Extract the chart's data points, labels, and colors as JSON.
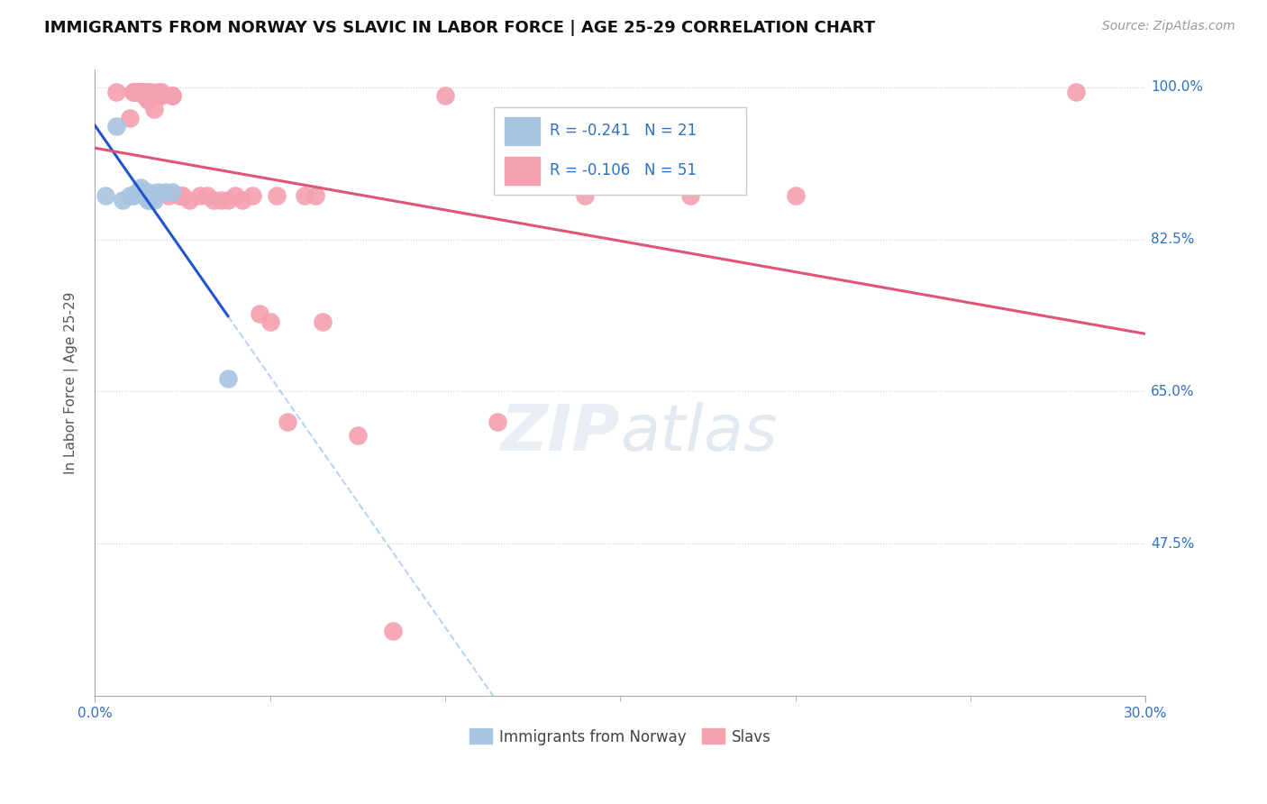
{
  "title": "IMMIGRANTS FROM NORWAY VS SLAVIC IN LABOR FORCE | AGE 25-29 CORRELATION CHART",
  "source": "Source: ZipAtlas.com",
  "ylabel": "In Labor Force | Age 25-29",
  "xlim": [
    0.0,
    0.3
  ],
  "ylim": [
    0.3,
    1.02
  ],
  "ytick_labels": [
    "100.0%",
    "82.5%",
    "65.0%",
    "47.5%"
  ],
  "ytick_values": [
    1.0,
    0.825,
    0.65,
    0.475
  ],
  "hgrid_values": [
    1.0,
    0.825,
    0.65,
    0.475
  ],
  "norway_R": -0.241,
  "norway_N": 21,
  "slavic_R": -0.106,
  "slavic_N": 51,
  "norway_color": "#a8c4e0",
  "slavic_color": "#f4a0b0",
  "norway_line_color": "#2255cc",
  "slavic_line_color": "#e05575",
  "dashed_line_color": "#a8c8f0",
  "legend_norway_fill": "#a8c4e0",
  "legend_slavic_fill": "#f4a0b0",
  "norway_x": [
    0.003,
    0.006,
    0.008,
    0.01,
    0.011,
    0.012,
    0.013,
    0.013,
    0.014,
    0.014,
    0.015,
    0.015,
    0.015,
    0.016,
    0.016,
    0.017,
    0.017,
    0.018,
    0.02,
    0.022,
    0.038
  ],
  "norway_y": [
    0.875,
    0.955,
    0.87,
    0.875,
    0.875,
    0.88,
    0.885,
    0.88,
    0.875,
    0.88,
    0.88,
    0.875,
    0.87,
    0.875,
    0.87,
    0.87,
    0.875,
    0.88,
    0.88,
    0.88,
    0.665
  ],
  "slavic_x": [
    0.006,
    0.01,
    0.011,
    0.011,
    0.012,
    0.012,
    0.012,
    0.013,
    0.013,
    0.013,
    0.014,
    0.014,
    0.015,
    0.015,
    0.016,
    0.016,
    0.017,
    0.018,
    0.018,
    0.019,
    0.019,
    0.021,
    0.022,
    0.022,
    0.024,
    0.025,
    0.025,
    0.027,
    0.03,
    0.032,
    0.034,
    0.036,
    0.038,
    0.04,
    0.042,
    0.045,
    0.047,
    0.05,
    0.052,
    0.055,
    0.06,
    0.063,
    0.065,
    0.075,
    0.085,
    0.1,
    0.115,
    0.14,
    0.17,
    0.2,
    0.28
  ],
  "slavic_y": [
    0.995,
    0.965,
    0.995,
    0.995,
    0.995,
    0.995,
    0.995,
    0.995,
    0.995,
    0.995,
    0.995,
    0.99,
    0.995,
    0.985,
    0.995,
    0.99,
    0.975,
    0.995,
    0.99,
    0.995,
    0.99,
    0.875,
    0.99,
    0.99,
    0.875,
    0.875,
    0.875,
    0.87,
    0.875,
    0.875,
    0.87,
    0.87,
    0.87,
    0.875,
    0.87,
    0.875,
    0.74,
    0.73,
    0.875,
    0.615,
    0.875,
    0.875,
    0.73,
    0.6,
    0.375,
    0.99,
    0.615,
    0.875,
    0.875,
    0.875,
    0.995
  ],
  "norway_line_xrange": [
    0.0,
    0.038
  ],
  "background_color": "#ffffff",
  "title_fontsize": 13,
  "axis_label_fontsize": 11,
  "tick_fontsize": 11,
  "legend_fontsize": 12,
  "source_fontsize": 10
}
